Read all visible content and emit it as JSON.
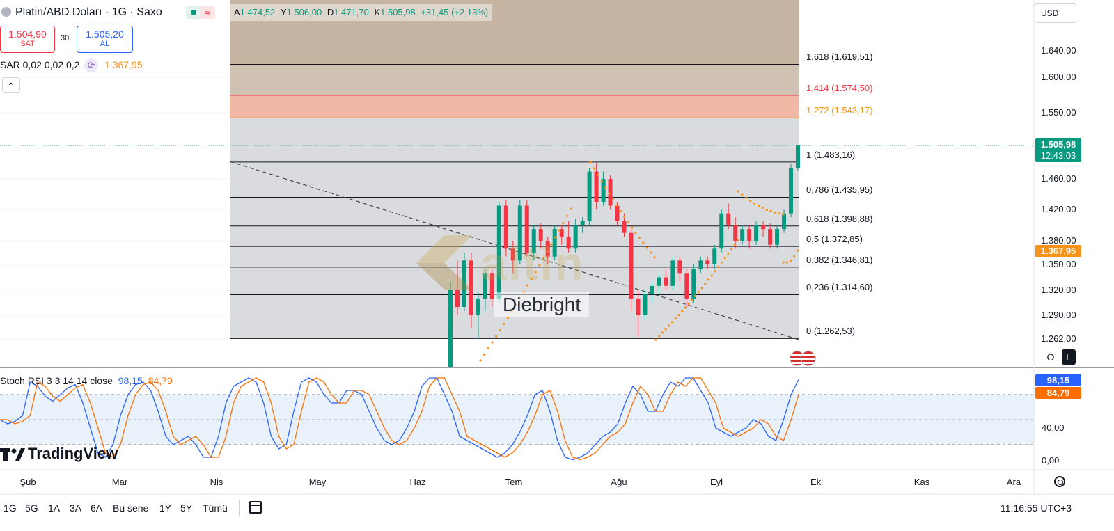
{
  "header": {
    "symbol_title": "Platin/ABD Doları · 1G · Saxo",
    "ohlc": {
      "o_label": "A",
      "o": "1.474,52",
      "h_label": "Y",
      "h": "1.506,00",
      "l_label": "D",
      "l": "1.471,70",
      "c_label": "K",
      "c": "1.505,98",
      "change": "+31,45 (+2,13%)"
    },
    "sell_price": "1.504,90",
    "sell_label": "SAT",
    "spread": "30",
    "buy_price": "1.505,20",
    "buy_label": "AL",
    "indicator_sar": "SAR 0,02 0,02 0,2",
    "sar_value": "1.367,95",
    "collapse_glyph": "⌃"
  },
  "currency_button": "USD",
  "fib_labels": [
    {
      "ratio": "1,618",
      "text": "1,618 (1.619,51)",
      "color": "#131722"
    },
    {
      "ratio": "1,414",
      "text": "1,414 (1.574,50)",
      "color": "#f23645"
    },
    {
      "ratio": "1,272",
      "text": "1,272 (1.543,17)",
      "color": "#ff9800"
    },
    {
      "ratio": "1",
      "text": "1 (1.483,16)",
      "color": "#131722"
    },
    {
      "ratio": "0,786",
      "text": "0,786 (1.435,95)",
      "color": "#131722"
    },
    {
      "ratio": "0,618",
      "text": "0,618 (1.398,88)",
      "color": "#131722"
    },
    {
      "ratio": "0,5",
      "text": "0,5 (1.372,85)",
      "color": "#131722"
    },
    {
      "ratio": "0,382",
      "text": "0,382 (1.346,81)",
      "color": "#131722"
    },
    {
      "ratio": "0,236",
      "text": "0,236 (1.314,60)",
      "color": "#131722"
    },
    {
      "ratio": "0",
      "text": "0 (1.262,53)",
      "color": "#131722"
    }
  ],
  "price_axis": {
    "ticks": [
      "1.640,00",
      "1.600,00",
      "1.550,00",
      "1.460,00",
      "1.420,00",
      "1.380,00",
      "1.350,00",
      "1.320,00",
      "1.290,00",
      "1.262,00"
    ]
  },
  "last_price_badge": {
    "price": "1.505,98",
    "countdown": "12:43:03",
    "color": "#089981"
  },
  "sar_badge": {
    "price": "1.367,95",
    "color": "#f7931a"
  },
  "rsi": {
    "title": "Stoch RSI 3 3 14 14 close",
    "k_value": "98,15",
    "d_value": "84,79",
    "k_color": "#2962ff",
    "d_color": "#ff6d00",
    "ticks": [
      "40,00",
      "0,00"
    ]
  },
  "time_axis": {
    "months": [
      "Şub",
      "Mar",
      "Nis",
      "May",
      "Haz",
      "Tem",
      "Ağu",
      "Eyl",
      "Eki",
      "Kas",
      "Ara"
    ]
  },
  "watermark": {
    "brand": "altin",
    "author": "Diebright"
  },
  "logo_text": "TradingView",
  "ohlc_buttons": {
    "o": "O",
    "l": "L"
  },
  "footer": {
    "ranges": [
      "1G",
      "5G",
      "1A",
      "3A",
      "6A",
      "Bu sene",
      "1Y",
      "5Y",
      "Tümü"
    ],
    "clock": "11:16:55 UTC+3"
  },
  "chart_data": {
    "type": "candlestick",
    "title": "Platin/ABD Doları · 1G · Saxo",
    "currency": "USD",
    "fibonacci": [
      {
        "ratio": 1.618,
        "price": 1619.51
      },
      {
        "ratio": 1.414,
        "price": 1574.5
      },
      {
        "ratio": 1.272,
        "price": 1543.17
      },
      {
        "ratio": 1,
        "price": 1483.16
      },
      {
        "ratio": 0.786,
        "price": 1435.95
      },
      {
        "ratio": 0.618,
        "price": 1398.88
      },
      {
        "ratio": 0.5,
        "price": 1372.85
      },
      {
        "ratio": 0.382,
        "price": 1346.81
      },
      {
        "ratio": 0.236,
        "price": 1314.6
      },
      {
        "ratio": 0,
        "price": 1262.53
      }
    ],
    "ohlc_approx": [
      [
        1200,
        1330,
        1190,
        1320
      ],
      [
        1320,
        1355,
        1290,
        1300
      ],
      [
        1300,
        1365,
        1295,
        1355
      ],
      [
        1355,
        1365,
        1275,
        1290
      ],
      [
        1290,
        1318,
        1262,
        1310
      ],
      [
        1310,
        1345,
        1295,
        1340
      ],
      [
        1340,
        1345,
        1300,
        1310
      ],
      [
        1310,
        1430,
        1305,
        1425
      ],
      [
        1425,
        1432,
        1360,
        1370
      ],
      [
        1370,
        1380,
        1340,
        1355
      ],
      [
        1355,
        1432,
        1350,
        1425
      ],
      [
        1425,
        1432,
        1360,
        1365
      ],
      [
        1365,
        1400,
        1355,
        1395
      ],
      [
        1395,
        1402,
        1370,
        1380
      ],
      [
        1380,
        1385,
        1350,
        1360
      ],
      [
        1360,
        1400,
        1355,
        1395
      ],
      [
        1395,
        1400,
        1375,
        1385
      ],
      [
        1385,
        1405,
        1365,
        1370
      ],
      [
        1370,
        1408,
        1365,
        1400
      ],
      [
        1400,
        1410,
        1390,
        1405
      ],
      [
        1405,
        1475,
        1400,
        1470
      ],
      [
        1470,
        1482,
        1420,
        1430
      ],
      [
        1430,
        1470,
        1425,
        1460
      ],
      [
        1460,
        1465,
        1420,
        1425
      ],
      [
        1425,
        1430,
        1400,
        1405
      ],
      [
        1405,
        1415,
        1385,
        1390
      ],
      [
        1390,
        1395,
        1295,
        1310
      ],
      [
        1310,
        1320,
        1265,
        1290
      ],
      [
        1290,
        1320,
        1285,
        1315
      ],
      [
        1315,
        1330,
        1305,
        1325
      ],
      [
        1325,
        1340,
        1315,
        1335
      ],
      [
        1335,
        1345,
        1320,
        1325
      ],
      [
        1325,
        1360,
        1320,
        1355
      ],
      [
        1355,
        1360,
        1330,
        1340
      ],
      [
        1340,
        1345,
        1300,
        1310
      ],
      [
        1310,
        1350,
        1305,
        1345
      ],
      [
        1345,
        1360,
        1340,
        1355
      ],
      [
        1355,
        1360,
        1345,
        1350
      ],
      [
        1350,
        1375,
        1345,
        1370
      ],
      [
        1370,
        1420,
        1365,
        1415
      ],
      [
        1415,
        1428,
        1395,
        1400
      ],
      [
        1400,
        1410,
        1370,
        1380
      ],
      [
        1380,
        1400,
        1375,
        1395
      ],
      [
        1395,
        1400,
        1370,
        1380
      ],
      [
        1380,
        1405,
        1375,
        1400
      ],
      [
        1400,
        1405,
        1385,
        1395
      ],
      [
        1395,
        1402,
        1370,
        1375
      ],
      [
        1375,
        1400,
        1370,
        1395
      ],
      [
        1395,
        1420,
        1390,
        1415
      ],
      [
        1415,
        1480,
        1410,
        1474.52
      ],
      [
        1474.52,
        1506,
        1471.7,
        1505.98
      ]
    ],
    "sar_last": 1367.95,
    "last": {
      "open": 1474.52,
      "high": 1506.0,
      "low": 1471.7,
      "close": 1505.98,
      "change": 31.45,
      "change_pct": 2.13
    },
    "bid": 1504.9,
    "ask": 1505.2,
    "stoch_rsi": {
      "k": 98.15,
      "d": 84.79,
      "ylim": [
        0,
        100
      ]
    },
    "y_range": [
      1262,
      1660
    ]
  }
}
